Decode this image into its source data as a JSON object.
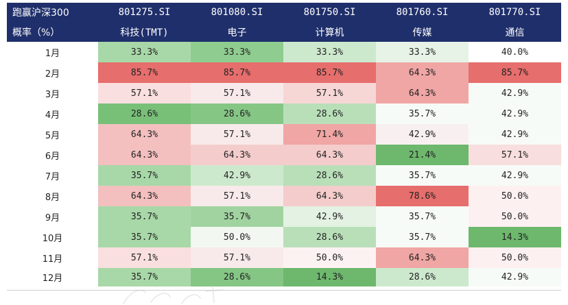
{
  "header": {
    "corner_line1": "跑赢沪深300",
    "corner_line2": "概率（%）",
    "codes": [
      "801275.SI",
      "801080.SI",
      "801750.SI",
      "801760.SI",
      "801770.SI"
    ],
    "names": [
      "科技(TMT)",
      "电子",
      "计算机",
      "传媒",
      "通信"
    ]
  },
  "rows": [
    {
      "month": "1月",
      "values": [
        "33.3%",
        "33.3%",
        "33.3%",
        "33.3%",
        "40.0%"
      ],
      "colors": [
        "#a8d8a8",
        "#8fcc8f",
        "#cde9cd",
        "#e6f3e6",
        "#ffffff"
      ]
    },
    {
      "month": "2月",
      "values": [
        "85.7%",
        "85.7%",
        "85.7%",
        "64.3%",
        "85.7%"
      ],
      "colors": [
        "#e66e6c",
        "#e66e6c",
        "#e66e6c",
        "#f0a6a4",
        "#e66e6c"
      ]
    },
    {
      "month": "3月",
      "values": [
        "57.1%",
        "57.1%",
        "57.1%",
        "64.3%",
        "42.9%"
      ],
      "colors": [
        "#f9dfdf",
        "#f8eaea",
        "#f7d6d6",
        "#f0a6a4",
        "#f7fbf7"
      ]
    },
    {
      "month": "4月",
      "values": [
        "28.6%",
        "28.6%",
        "28.6%",
        "35.7%",
        "42.9%"
      ],
      "colors": [
        "#78c078",
        "#85c685",
        "#b9dfb9",
        "#f7fbf7",
        "#f7fbf7"
      ]
    },
    {
      "month": "5月",
      "values": [
        "64.3%",
        "57.1%",
        "71.4%",
        "42.9%",
        "42.9%"
      ],
      "colors": [
        "#f3c0bf",
        "#f8eaea",
        "#f0a6a4",
        "#f8f0f0",
        "#f7fbf7"
      ]
    },
    {
      "month": "6月",
      "values": [
        "64.3%",
        "64.3%",
        "64.3%",
        "21.4%",
        "57.1%"
      ],
      "colors": [
        "#f3c0bf",
        "#f4cccc",
        "#f4cccc",
        "#6db86d",
        "#f8dede"
      ]
    },
    {
      "month": "7月",
      "values": [
        "35.7%",
        "42.9%",
        "28.6%",
        "35.7%",
        "42.9%"
      ],
      "colors": [
        "#a8d8a8",
        "#cde9cd",
        "#b9dfb9",
        "#f7fbf7",
        "#f7fbf7"
      ]
    },
    {
      "month": "8月",
      "values": [
        "64.3%",
        "57.1%",
        "64.3%",
        "78.6%",
        "50.0%"
      ],
      "colors": [
        "#f3c0bf",
        "#f8eaea",
        "#f4cccc",
        "#e66e6c",
        "#fcf0f0"
      ]
    },
    {
      "month": "9月",
      "values": [
        "35.7%",
        "35.7%",
        "42.9%",
        "35.7%",
        "50.0%"
      ],
      "colors": [
        "#a8d8a8",
        "#a0d3a0",
        "#e3f2e3",
        "#f7fbf7",
        "#fcf0f0"
      ]
    },
    {
      "month": "10月",
      "values": [
        "35.7%",
        "50.0%",
        "28.6%",
        "35.7%",
        "14.3%"
      ],
      "colors": [
        "#a8d8a8",
        "#f2f7f2",
        "#b9dfb9",
        "#f7fbf7",
        "#6db86d"
      ]
    },
    {
      "month": "11月",
      "values": [
        "57.1%",
        "57.1%",
        "50.0%",
        "64.3%",
        "50.0%"
      ],
      "colors": [
        "#f9dfdf",
        "#f8eaea",
        "#fdf2f2",
        "#f0a6a4",
        "#fcf0f0"
      ]
    },
    {
      "month": "12月",
      "values": [
        "35.7%",
        "28.6%",
        "14.3%",
        "28.6%",
        "42.9%"
      ],
      "colors": [
        "#a8d8a8",
        "#85c685",
        "#6db86d",
        "#cde9cd",
        "#f7fbf7"
      ]
    }
  ]
}
